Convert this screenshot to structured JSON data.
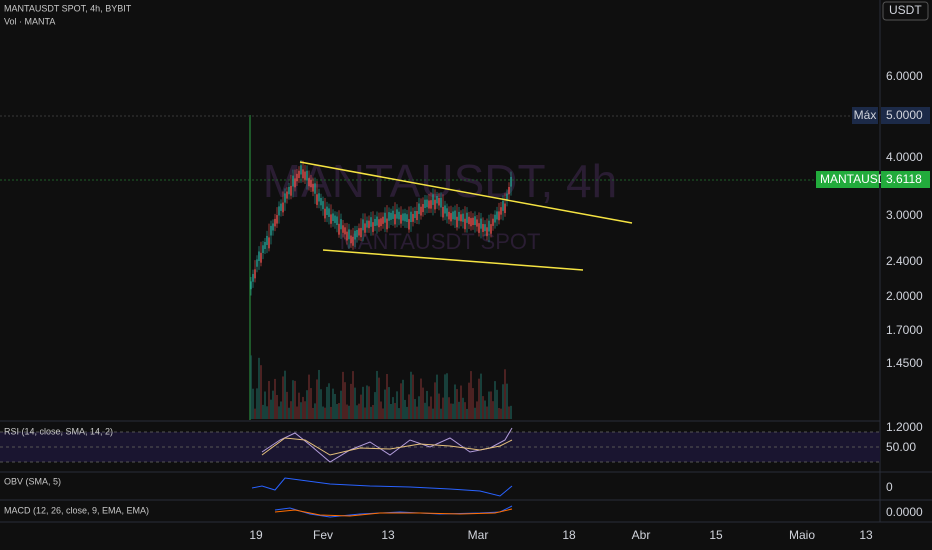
{
  "header": {
    "symbol": "MANTAUSDT SPOT, 4h, BYBIT",
    "volume": "Vol · MANTA"
  },
  "currency": "USDT",
  "watermark": {
    "title": "MANTAUSDT, 4h",
    "subtitle": "MANTAUSDT SPOT"
  },
  "price_axis": {
    "labels": [
      "6.0000",
      "4.0000",
      "3.0000",
      "2.4000",
      "2.0000",
      "1.7000",
      "1.4500",
      "1.2000"
    ],
    "max_label": "Máx",
    "max_value": "5.0000",
    "last_symbol": "MANTAUSDT",
    "last_value": "3.6118"
  },
  "indicators": [
    {
      "label": "RSI (14, close, SMA, 14, 2)",
      "value": "50.00"
    },
    {
      "label": "OBV (SMA, 5)",
      "value": "0"
    },
    {
      "label": "MACD (12, 26, close, 9, EMA, EMA)",
      "value": "0.0000"
    }
  ],
  "time_axis": [
    "19",
    "Fev",
    "13",
    "Mar",
    "18",
    "Abr",
    "15",
    "Maio",
    "13"
  ]
}
